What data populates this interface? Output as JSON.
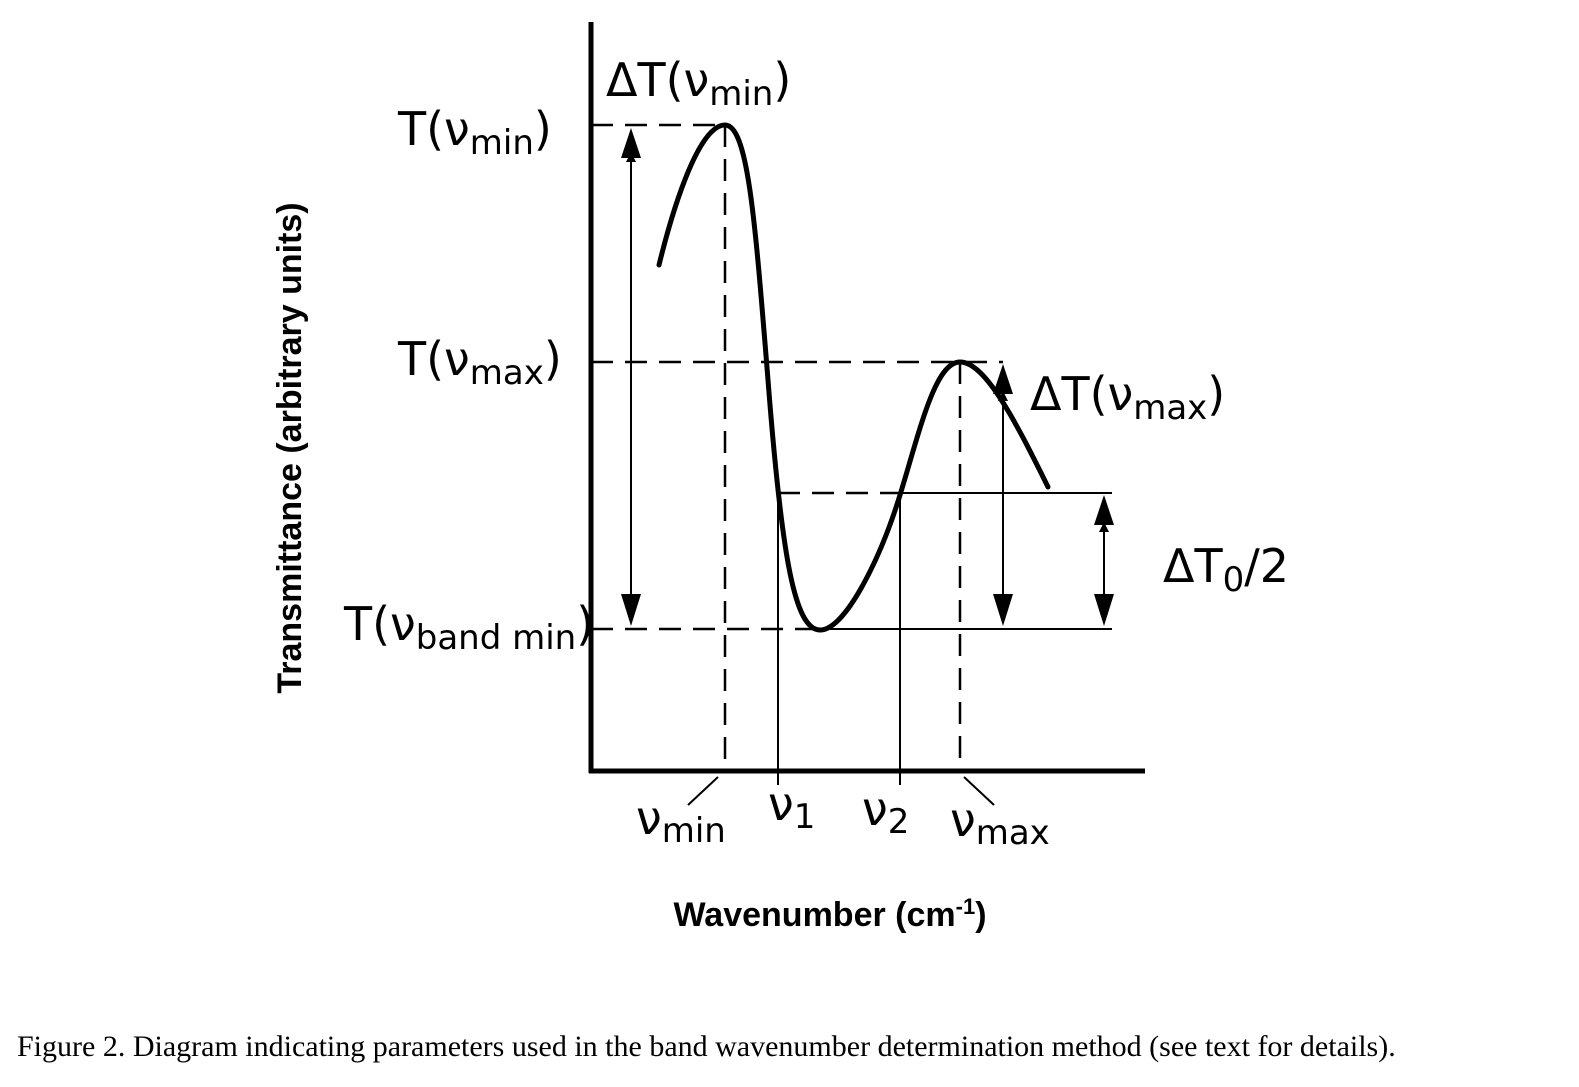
{
  "y_axis_title": "Transmittance (arbitrary units)",
  "x_axis_title": {
    "text": "Wavenumber (cm",
    "sup": "-1",
    "close": ")"
  },
  "y_labels": {
    "t_vmin": {
      "main": "T(ν",
      "sub": "min",
      "close": ")"
    },
    "t_vmax": {
      "main": "T(ν",
      "sub": "max",
      "close": ")"
    },
    "t_vband_min": {
      "main": "T(ν",
      "sub": "band min",
      "close": ")"
    }
  },
  "delta_labels": {
    "dt_vmin": {
      "main": "ΔT(ν",
      "sub": "min",
      "close": ")"
    },
    "dt_vmax": {
      "main": "ΔT(ν",
      "sub": "max",
      "close": ")"
    },
    "dt0_half": {
      "main": "ΔT",
      "sub": "0",
      "close": "/2"
    }
  },
  "x_labels": {
    "v_min": {
      "main": "ν",
      "sub": "min"
    },
    "v1": {
      "main": "ν",
      "sub": "1"
    },
    "v2": {
      "main": "ν",
      "sub": "2"
    },
    "v_max": {
      "main": "ν",
      "sub": "max"
    }
  },
  "caption": "Figure 2.  Diagram indicating parameters used in the band wavenumber determination method (see text for details)."
}
